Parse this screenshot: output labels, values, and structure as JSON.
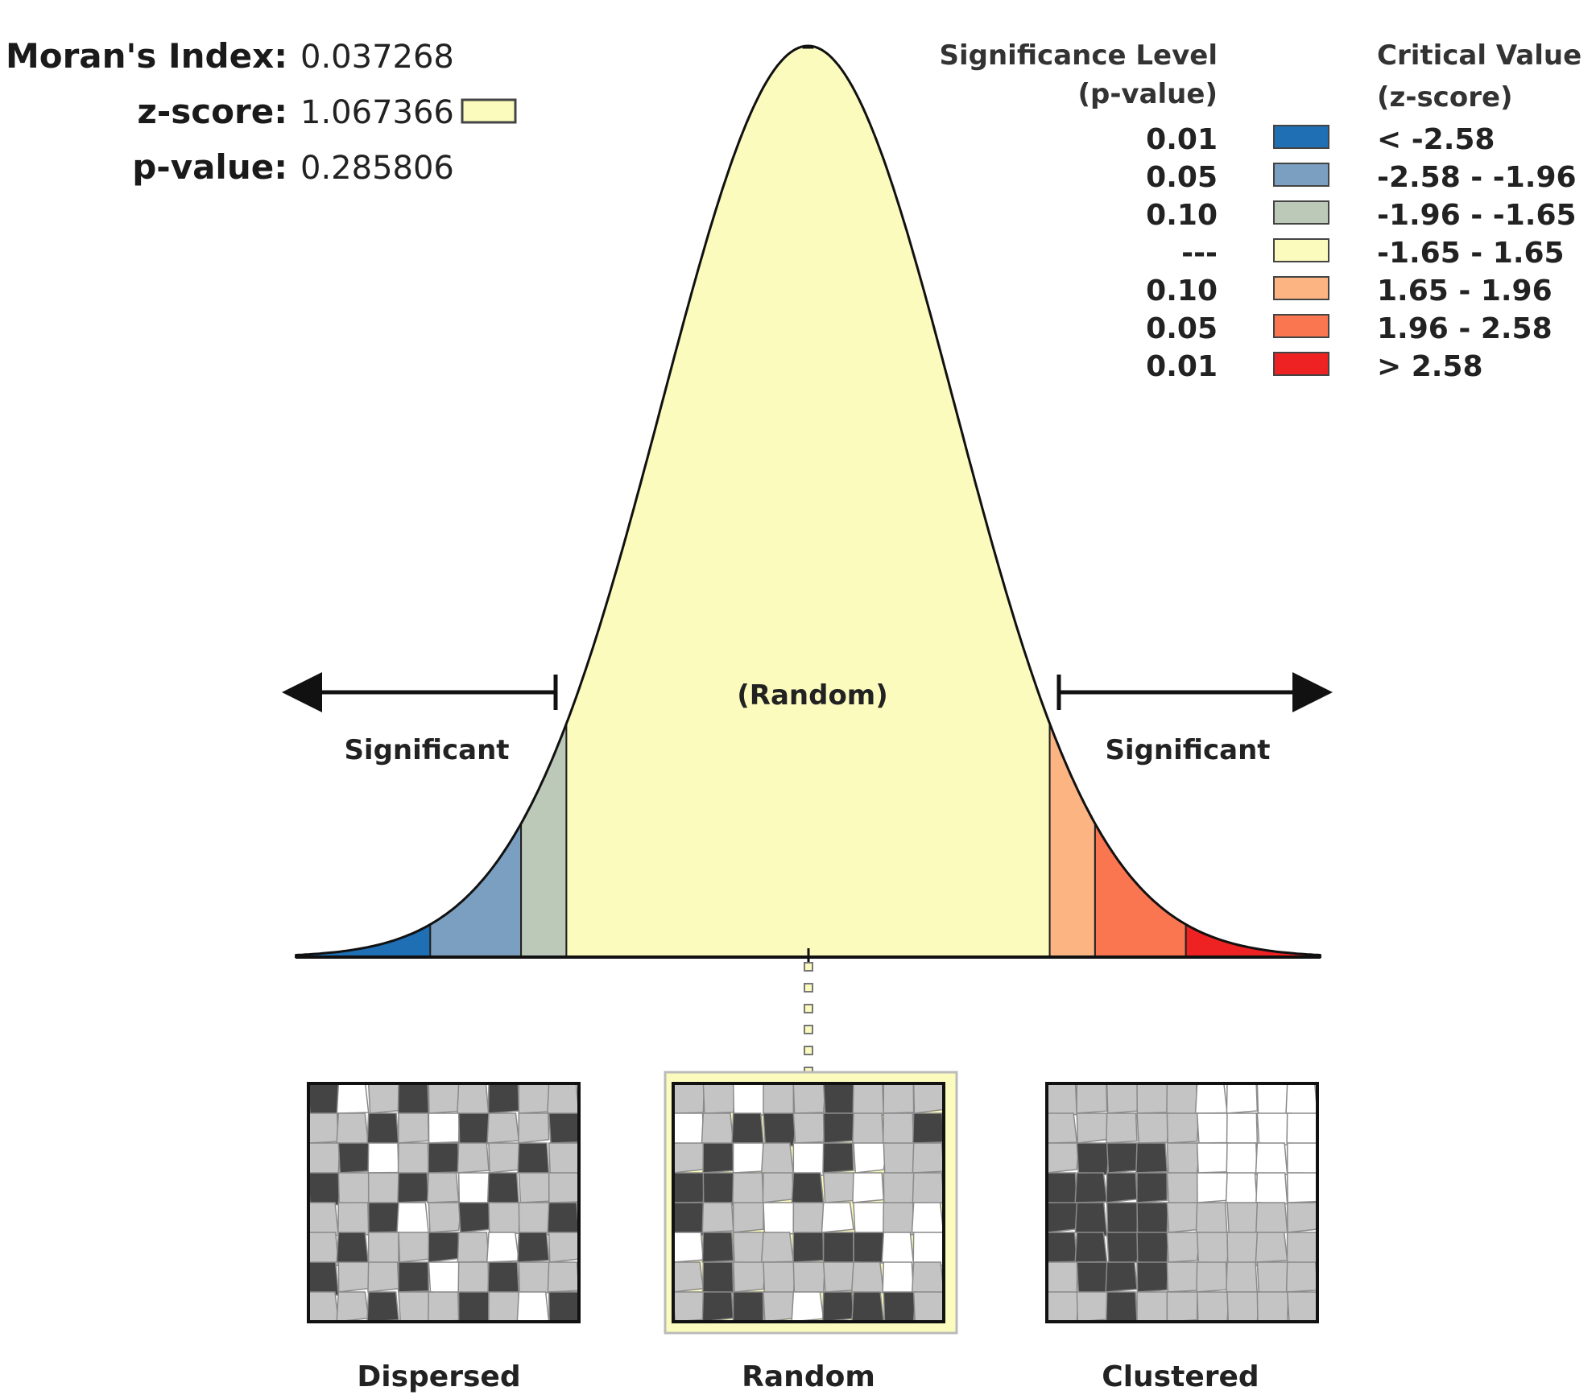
{
  "stats": {
    "morans_index_label": "Moran's Index:",
    "morans_index_value": "0.037268",
    "z_score_label": "z-score:",
    "z_score_value": "1.067366",
    "p_value_label": "p-value:",
    "p_value_value": "0.285806"
  },
  "legend": {
    "significance_header": [
      "Significance Level",
      "(p-value)"
    ],
    "critical_header": [
      "Critical Value",
      "(z-score)"
    ],
    "rows": [
      {
        "p": "0.01",
        "z": "< -2.58",
        "color": "#1f6fb4"
      },
      {
        "p": "0.05",
        "z": "-2.58 - -1.96",
        "color": "#7a9fc0"
      },
      {
        "p": "0.10",
        "z": "-1.96 - -1.65",
        "color": "#bcc8b8"
      },
      {
        "p": "---",
        "z": "-1.65 - 1.65",
        "color": "#fbfbbd"
      },
      {
        "p": "0.10",
        "z": "1.65 - 1.96",
        "color": "#fbb482"
      },
      {
        "p": "0.05",
        "z": "1.96 - 2.58",
        "color": "#fa7650"
      },
      {
        "p": "0.01",
        "z": "> 2.58",
        "color": "#ee2222"
      }
    ]
  },
  "curve_labels": {
    "center": "(Random)",
    "left": "Significant",
    "right": "Significant"
  },
  "panels": [
    "Dispersed",
    "Random",
    "Clustered"
  ],
  "chart_data": {
    "type": "area",
    "title": "",
    "distribution": "standard normal",
    "x_range": [
      -3.5,
      3.5
    ],
    "observed_z": 1.067366,
    "regions": [
      {
        "from": -3.5,
        "to": -2.58,
        "color": "#1f6fb4"
      },
      {
        "from": -2.58,
        "to": -1.96,
        "color": "#7a9fc0"
      },
      {
        "from": -1.96,
        "to": -1.65,
        "color": "#bcc8b8"
      },
      {
        "from": -1.65,
        "to": 1.65,
        "color": "#fbfbbd"
      },
      {
        "from": 1.65,
        "to": 1.96,
        "color": "#fbb482"
      },
      {
        "from": 1.96,
        "to": 2.58,
        "color": "#fa7650"
      },
      {
        "from": 2.58,
        "to": 3.5,
        "color": "#ee2222"
      }
    ]
  }
}
